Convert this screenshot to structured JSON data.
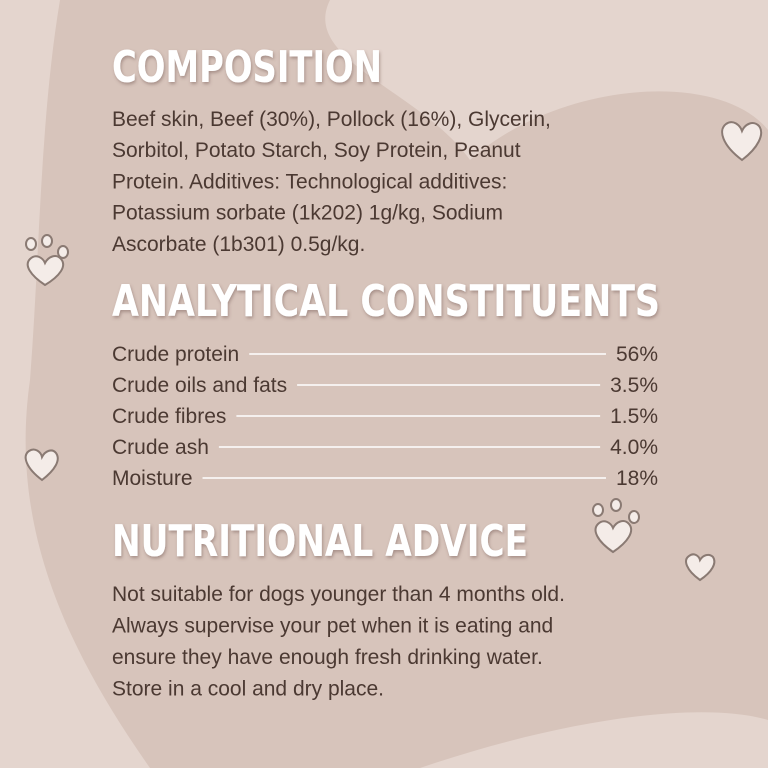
{
  "composition": {
    "title": "COMPOSITION",
    "lines": [
      "Beef skin, Beef (30%), Pollock (16%), Glycerin,",
      "Sorbitol, Potato Starch, Soy Protein, Peanut",
      "Protein. Additives: Technological additives:",
      "Potassium sorbate (1k202) 1g/kg, Sodium",
      "Ascorbate (1b301) 0.5g/kg."
    ]
  },
  "analytical_constituents": {
    "title": "ANALYTICAL CONSTITUENTS",
    "rows": [
      {
        "name": "Crude protein",
        "value": "56%"
      },
      {
        "name": "Crude oils and fats",
        "value": "3.5%"
      },
      {
        "name": "Crude fibres",
        "value": "1.5%"
      },
      {
        "name": "Crude ash",
        "value": "4.0%"
      },
      {
        "name": "Moisture",
        "value": "18%"
      }
    ]
  },
  "nutritional_advice": {
    "title": "NUTRITIONAL ADVICE",
    "lines": [
      "Not suitable for dogs younger than 4 months old.",
      "Always supervise your pet when it is eating and",
      "ensure they have enough fresh drinking water.",
      "Store in a cool and dry place."
    ]
  }
}
